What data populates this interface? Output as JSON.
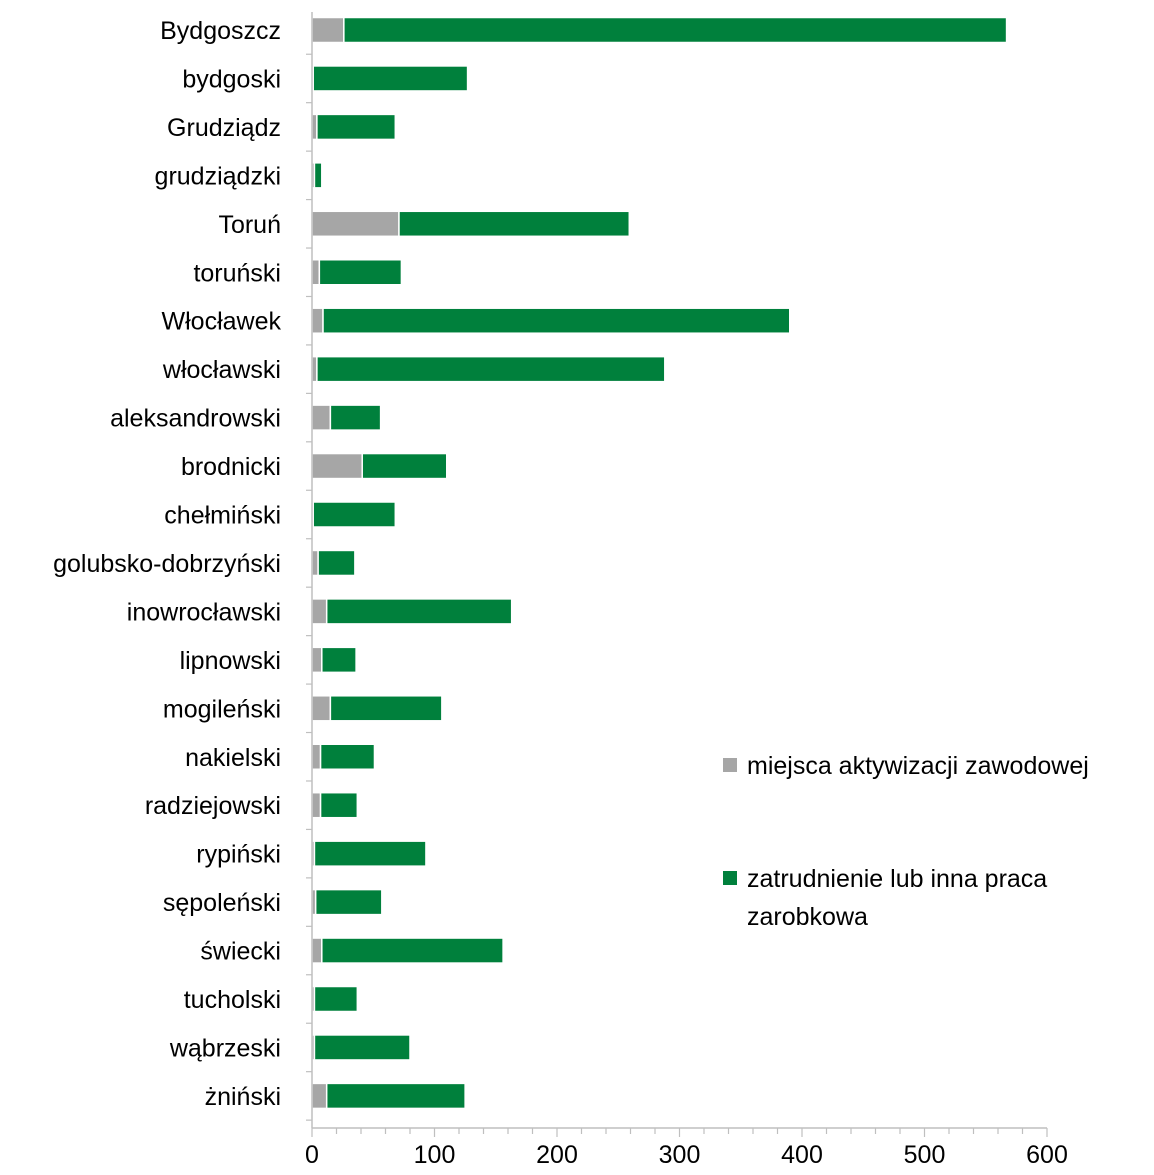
{
  "chart_data": {
    "type": "bar",
    "orientation": "horizontal",
    "stacked": true,
    "categories": [
      "Bydgoszcz",
      "bydgoski",
      "Grudziądz",
      "grudziądzki",
      "Toruń",
      "toruński",
      "Włocławek",
      "włocławski",
      "aleksandrowski",
      "brodnicki",
      "chełmiński",
      "golubsko-dobrzyński",
      "inowrocławski",
      "lipnowski",
      "mogileński",
      "nakielski",
      "radziejowski",
      "rypiński",
      "sępoleński",
      "świecki",
      "tucholski",
      "wąbrzeski",
      "żniński"
    ],
    "series": [
      {
        "name": "miejsca aktywizacji zawodowej",
        "color": "#a6a6a6",
        "values": [
          26,
          1,
          4,
          2,
          71,
          6,
          9,
          4,
          15,
          41,
          1,
          5,
          12,
          8,
          15,
          7,
          7,
          2,
          3,
          8,
          2,
          2,
          12
        ]
      },
      {
        "name": "zatrudnienie lub inna praca zarobkowa",
        "color": "#00803c",
        "values": [
          541,
          126,
          64,
          6,
          188,
          67,
          381,
          284,
          41,
          69,
          67,
          30,
          151,
          28,
          91,
          44,
          30,
          91,
          54,
          148,
          35,
          78,
          113
        ]
      }
    ],
    "xlim": [
      0,
      600
    ],
    "xticks": [
      "0",
      "100",
      "200",
      "300",
      "400",
      "500",
      "600"
    ],
    "xlabel": "",
    "ylabel": "",
    "title": "",
    "grid": false,
    "legend_position": "right"
  }
}
